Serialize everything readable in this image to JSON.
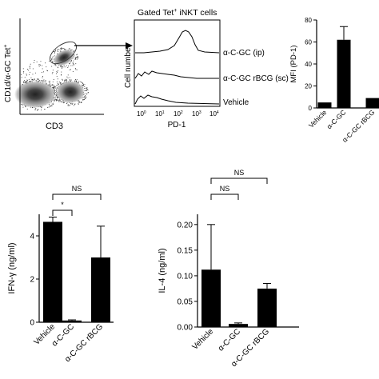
{
  "figure": {
    "flow_plot": {
      "ylabel": "CD1d/α-GC Tet",
      "ylabel_sup": "+",
      "xlabel": "CD3"
    },
    "histogram": {
      "title_prefix": "Gated Tet",
      "title_sup": "+",
      "title_suffix": " iNKT cells",
      "ylabel": "Cell number",
      "xlabel": "PD-1",
      "ticks": [
        "10",
        "10",
        "10",
        "10",
        "10"
      ],
      "tick_exps": [
        "0",
        "1",
        "2",
        "3",
        "4"
      ],
      "labels": [
        "α-C-GC (ip)",
        "α-C-GC rBCG (sc)",
        "Vehicle"
      ]
    }
  },
  "chart_data": [
    {
      "type": "bar",
      "ylabel": "MFI (PD-1)",
      "categories": [
        "Vehicle",
        "α-C-GC",
        "α-C-GC rBCG"
      ],
      "values": [
        5,
        62,
        9
      ],
      "errors": [
        0,
        12,
        0
      ],
      "ylim": [
        0,
        80
      ],
      "yticks": [
        "0",
        "20",
        "40",
        "60",
        "80"
      ],
      "colors": {
        "bar": "#000000"
      }
    },
    {
      "type": "bar",
      "ylabel": "IFN-γ (ng/ml)",
      "categories": [
        "Vehicle",
        "α-C-GC",
        "α-C-GC rBCG"
      ],
      "values": [
        4.65,
        0.08,
        3.0
      ],
      "errors": [
        0.22,
        0.03,
        1.45
      ],
      "ylim": [
        0,
        5
      ],
      "yticks": [
        "0",
        "2",
        "4"
      ],
      "annotations": [
        "*",
        "NS"
      ],
      "colors": {
        "bar": "#000000"
      }
    },
    {
      "type": "bar",
      "ylabel": "IL-4 (ng/ml)",
      "categories": [
        "Vehicle",
        "α-C-GC",
        "α-C-GC rBCG"
      ],
      "values": [
        0.112,
        0.006,
        0.075
      ],
      "errors": [
        0.088,
        0.002,
        0.01
      ],
      "ylim": [
        0,
        0.22
      ],
      "yticks": [
        "0.00",
        "0.05",
        "0.10",
        "0.15",
        "0.20"
      ],
      "annotations": [
        "NS",
        "NS"
      ],
      "colors": {
        "bar": "#000000"
      }
    }
  ]
}
